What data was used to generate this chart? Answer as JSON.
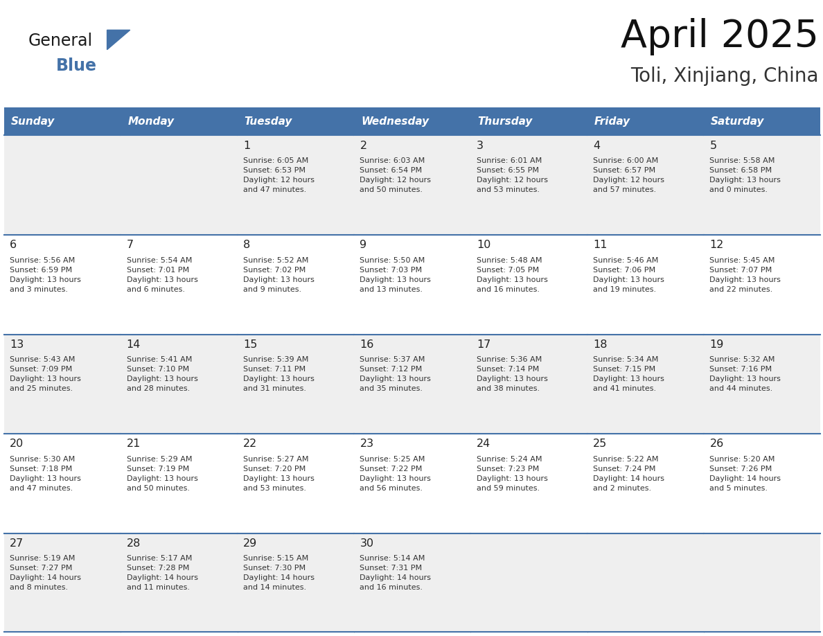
{
  "title": "April 2025",
  "subtitle": "Toli, Xinjiang, China",
  "header_bg": "#4472A8",
  "header_text_color": "#FFFFFF",
  "cell_bg_odd": "#EFEFEF",
  "cell_bg_even": "#FFFFFF",
  "border_color": "#4472A8",
  "text_color": "#333333",
  "day_number_color": "#222222",
  "day_names": [
    "Sunday",
    "Monday",
    "Tuesday",
    "Wednesday",
    "Thursday",
    "Friday",
    "Saturday"
  ],
  "weeks": [
    [
      {
        "day": "",
        "info": ""
      },
      {
        "day": "",
        "info": ""
      },
      {
        "day": "1",
        "info": "Sunrise: 6:05 AM\nSunset: 6:53 PM\nDaylight: 12 hours\nand 47 minutes."
      },
      {
        "day": "2",
        "info": "Sunrise: 6:03 AM\nSunset: 6:54 PM\nDaylight: 12 hours\nand 50 minutes."
      },
      {
        "day": "3",
        "info": "Sunrise: 6:01 AM\nSunset: 6:55 PM\nDaylight: 12 hours\nand 53 minutes."
      },
      {
        "day": "4",
        "info": "Sunrise: 6:00 AM\nSunset: 6:57 PM\nDaylight: 12 hours\nand 57 minutes."
      },
      {
        "day": "5",
        "info": "Sunrise: 5:58 AM\nSunset: 6:58 PM\nDaylight: 13 hours\nand 0 minutes."
      }
    ],
    [
      {
        "day": "6",
        "info": "Sunrise: 5:56 AM\nSunset: 6:59 PM\nDaylight: 13 hours\nand 3 minutes."
      },
      {
        "day": "7",
        "info": "Sunrise: 5:54 AM\nSunset: 7:01 PM\nDaylight: 13 hours\nand 6 minutes."
      },
      {
        "day": "8",
        "info": "Sunrise: 5:52 AM\nSunset: 7:02 PM\nDaylight: 13 hours\nand 9 minutes."
      },
      {
        "day": "9",
        "info": "Sunrise: 5:50 AM\nSunset: 7:03 PM\nDaylight: 13 hours\nand 13 minutes."
      },
      {
        "day": "10",
        "info": "Sunrise: 5:48 AM\nSunset: 7:05 PM\nDaylight: 13 hours\nand 16 minutes."
      },
      {
        "day": "11",
        "info": "Sunrise: 5:46 AM\nSunset: 7:06 PM\nDaylight: 13 hours\nand 19 minutes."
      },
      {
        "day": "12",
        "info": "Sunrise: 5:45 AM\nSunset: 7:07 PM\nDaylight: 13 hours\nand 22 minutes."
      }
    ],
    [
      {
        "day": "13",
        "info": "Sunrise: 5:43 AM\nSunset: 7:09 PM\nDaylight: 13 hours\nand 25 minutes."
      },
      {
        "day": "14",
        "info": "Sunrise: 5:41 AM\nSunset: 7:10 PM\nDaylight: 13 hours\nand 28 minutes."
      },
      {
        "day": "15",
        "info": "Sunrise: 5:39 AM\nSunset: 7:11 PM\nDaylight: 13 hours\nand 31 minutes."
      },
      {
        "day": "16",
        "info": "Sunrise: 5:37 AM\nSunset: 7:12 PM\nDaylight: 13 hours\nand 35 minutes."
      },
      {
        "day": "17",
        "info": "Sunrise: 5:36 AM\nSunset: 7:14 PM\nDaylight: 13 hours\nand 38 minutes."
      },
      {
        "day": "18",
        "info": "Sunrise: 5:34 AM\nSunset: 7:15 PM\nDaylight: 13 hours\nand 41 minutes."
      },
      {
        "day": "19",
        "info": "Sunrise: 5:32 AM\nSunset: 7:16 PM\nDaylight: 13 hours\nand 44 minutes."
      }
    ],
    [
      {
        "day": "20",
        "info": "Sunrise: 5:30 AM\nSunset: 7:18 PM\nDaylight: 13 hours\nand 47 minutes."
      },
      {
        "day": "21",
        "info": "Sunrise: 5:29 AM\nSunset: 7:19 PM\nDaylight: 13 hours\nand 50 minutes."
      },
      {
        "day": "22",
        "info": "Sunrise: 5:27 AM\nSunset: 7:20 PM\nDaylight: 13 hours\nand 53 minutes."
      },
      {
        "day": "23",
        "info": "Sunrise: 5:25 AM\nSunset: 7:22 PM\nDaylight: 13 hours\nand 56 minutes."
      },
      {
        "day": "24",
        "info": "Sunrise: 5:24 AM\nSunset: 7:23 PM\nDaylight: 13 hours\nand 59 minutes."
      },
      {
        "day": "25",
        "info": "Sunrise: 5:22 AM\nSunset: 7:24 PM\nDaylight: 14 hours\nand 2 minutes."
      },
      {
        "day": "26",
        "info": "Sunrise: 5:20 AM\nSunset: 7:26 PM\nDaylight: 14 hours\nand 5 minutes."
      }
    ],
    [
      {
        "day": "27",
        "info": "Sunrise: 5:19 AM\nSunset: 7:27 PM\nDaylight: 14 hours\nand 8 minutes."
      },
      {
        "day": "28",
        "info": "Sunrise: 5:17 AM\nSunset: 7:28 PM\nDaylight: 14 hours\nand 11 minutes."
      },
      {
        "day": "29",
        "info": "Sunrise: 5:15 AM\nSunset: 7:30 PM\nDaylight: 14 hours\nand 14 minutes."
      },
      {
        "day": "30",
        "info": "Sunrise: 5:14 AM\nSunset: 7:31 PM\nDaylight: 14 hours\nand 16 minutes."
      },
      {
        "day": "",
        "info": ""
      },
      {
        "day": "",
        "info": ""
      },
      {
        "day": "",
        "info": ""
      }
    ]
  ],
  "logo_color_general": "#1a1a1a",
  "logo_color_blue": "#4472A8",
  "logo_triangle_color": "#4472A8"
}
